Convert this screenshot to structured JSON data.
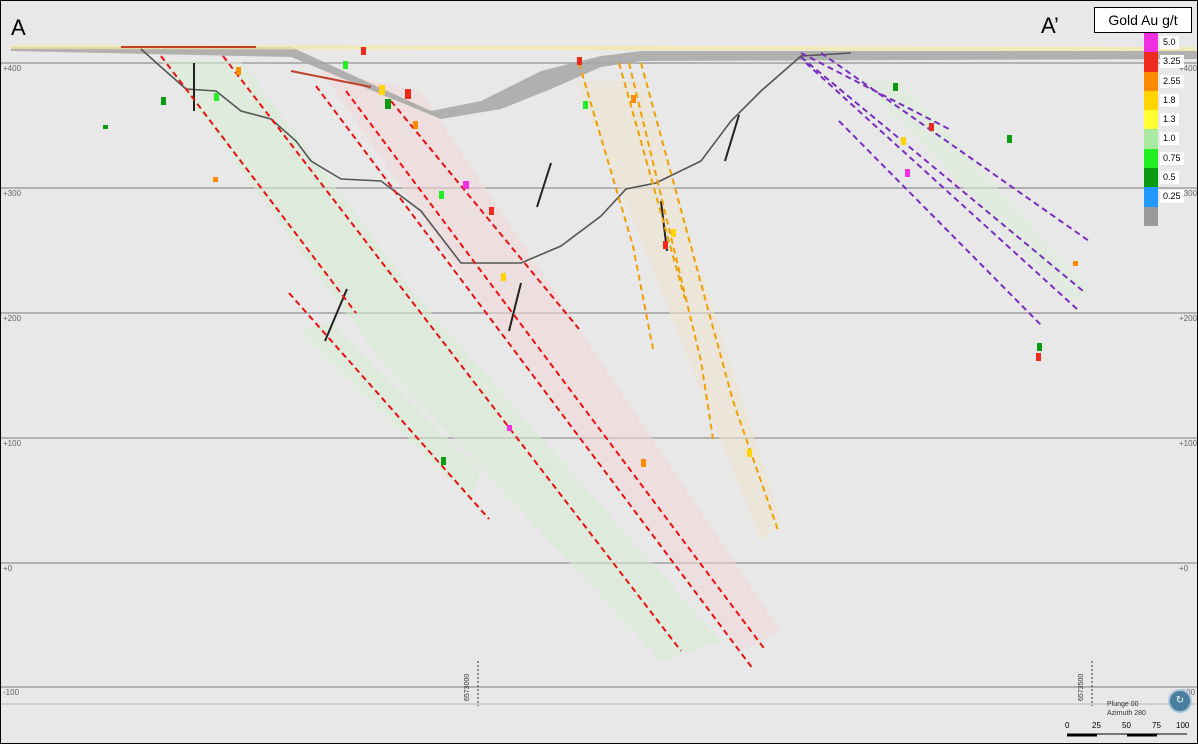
{
  "section": {
    "start_label": "A",
    "end_label": "A’"
  },
  "legend": {
    "title": "Gold Au g/t",
    "bands": [
      {
        "label": "5.0",
        "color": "#f030e0"
      },
      {
        "label": "3.25",
        "color": "#ee2a1c"
      },
      {
        "label": "2.55",
        "color": "#ff8a00"
      },
      {
        "label": "1.8",
        "color": "#ffd400"
      },
      {
        "label": "1.3",
        "color": "#ffff33"
      },
      {
        "label": "1.0",
        "color": "#a8eba0"
      },
      {
        "label": "0.75",
        "color": "#22ee22"
      },
      {
        "label": "0.5",
        "color": "#0a9a12"
      },
      {
        "label": "0.25",
        "color": "#2299ff"
      },
      {
        "label": "",
        "color": "#9a9a9a"
      }
    ]
  },
  "elevation_labels": {
    "left": [
      "+400",
      "+300",
      "+200",
      "+100",
      "+0",
      "-100"
    ],
    "right": [
      "+400",
      "+300",
      "+200",
      "+100",
      "+0",
      "-100"
    ]
  },
  "northings": [
    "6573000",
    "6573500"
  ],
  "view": {
    "plunge": "Plunge 00",
    "azimuth": "Azimuth 280"
  },
  "scale_bar": {
    "ticks": [
      "0",
      "25",
      "50",
      "75",
      "100"
    ]
  },
  "colors": {
    "background": "#e8e8e8",
    "gridline": "#a0a0a0",
    "lode_red": "#e81010",
    "lode_orange": "#f0a000",
    "lode_purple": "#7a2ec0",
    "surface": "#555555"
  }
}
